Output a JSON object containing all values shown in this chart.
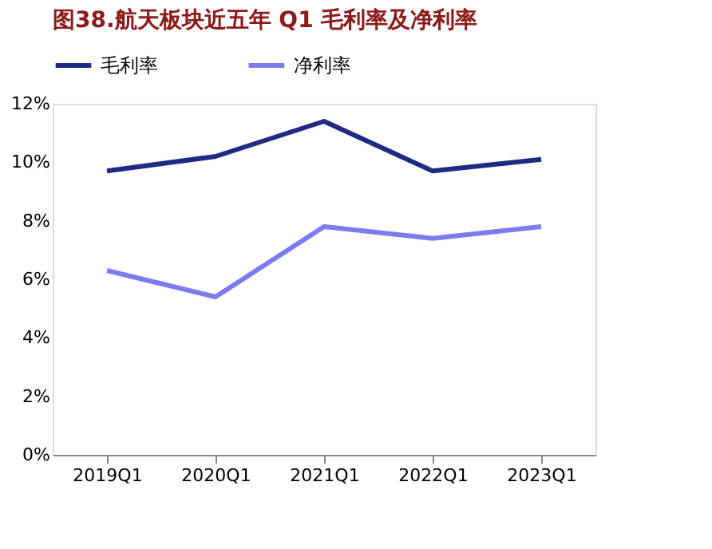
{
  "chart_data": {
    "type": "line",
    "title": "图38.航天板块近五年 Q1 毛利率及净利率",
    "categories": [
      "2019Q1",
      "2020Q1",
      "2021Q1",
      "2022Q1",
      "2023Q1"
    ],
    "series": [
      {
        "name": "毛利率",
        "color": "#1f2a84",
        "values": [
          9.7,
          10.2,
          11.4,
          9.7,
          10.1
        ]
      },
      {
        "name": "净利率",
        "color": "#7b7cf0",
        "values": [
          6.3,
          5.4,
          7.8,
          7.4,
          7.8
        ]
      }
    ],
    "ylim": [
      0,
      12
    ],
    "yticks": [
      {
        "value": 0,
        "label": "0%"
      },
      {
        "value": 2,
        "label": "2%"
      },
      {
        "value": 4,
        "label": "4%"
      },
      {
        "value": 6,
        "label": "6%"
      },
      {
        "value": 8,
        "label": "8%"
      },
      {
        "value": 10,
        "label": "10%"
      },
      {
        "value": 12,
        "label": "12%"
      }
    ],
    "grid": false,
    "legend": "top",
    "marker": "none",
    "line_style": "solid"
  }
}
